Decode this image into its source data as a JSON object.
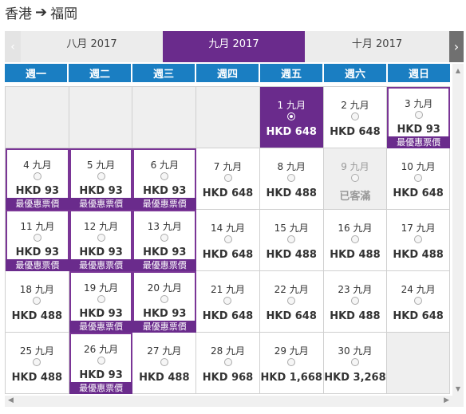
{
  "route": {
    "origin": "香港",
    "arrow": "➔",
    "destination": "福岡"
  },
  "months": {
    "prev_arrow": "‹",
    "next_arrow": "›",
    "prev": "八月 2017",
    "current": "九月 2017",
    "next": "十月 2017"
  },
  "weekdays": [
    "週一",
    "週二",
    "週三",
    "週四",
    "週五",
    "週六",
    "週日"
  ],
  "best_label": "最優惠票價",
  "rows": [
    [
      {
        "empty": true
      },
      {
        "empty": true
      },
      {
        "empty": true
      },
      {
        "empty": true
      },
      {
        "date": "1 九月",
        "price": "HKD 648",
        "selected": true
      },
      {
        "date": "2 九月",
        "price": "HKD 648"
      },
      {
        "date": "3 九月",
        "price": "HKD 93",
        "best": true
      }
    ],
    [
      {
        "date": "4 九月",
        "price": "HKD 93",
        "best": true
      },
      {
        "date": "5 九月",
        "price": "HKD 93",
        "best": true
      },
      {
        "date": "6 九月",
        "price": "HKD 93",
        "best": true
      },
      {
        "date": "7 九月",
        "price": "HKD 648"
      },
      {
        "date": "8 九月",
        "price": "HKD 488"
      },
      {
        "date": "9 九月",
        "price": "已客滿",
        "soldout": true
      },
      {
        "date": "10 九月",
        "price": "HKD 648"
      }
    ],
    [
      {
        "date": "11 九月",
        "price": "HKD 93",
        "best": true
      },
      {
        "date": "12 九月",
        "price": "HKD 93",
        "best": true
      },
      {
        "date": "13 九月",
        "price": "HKD 93",
        "best": true
      },
      {
        "date": "14 九月",
        "price": "HKD 648"
      },
      {
        "date": "15 九月",
        "price": "HKD 488"
      },
      {
        "date": "16 九月",
        "price": "HKD 488"
      },
      {
        "date": "17 九月",
        "price": "HKD 488"
      }
    ],
    [
      {
        "date": "18 九月",
        "price": "HKD 488"
      },
      {
        "date": "19 九月",
        "price": "HKD 93",
        "best": true
      },
      {
        "date": "20 九月",
        "price": "HKD 93",
        "best": true
      },
      {
        "date": "21 九月",
        "price": "HKD 648"
      },
      {
        "date": "22 九月",
        "price": "HKD 648"
      },
      {
        "date": "23 九月",
        "price": "HKD 488"
      },
      {
        "date": "24 九月",
        "price": "HKD 648"
      }
    ],
    [
      {
        "date": "25 九月",
        "price": "HKD 488"
      },
      {
        "date": "26 九月",
        "price": "HKD 93",
        "best": true
      },
      {
        "date": "27 九月",
        "price": "HKD 488"
      },
      {
        "date": "28 九月",
        "price": "HKD 968"
      },
      {
        "date": "29 九月",
        "price": "HKD 1,668"
      },
      {
        "date": "30 九月",
        "price": "HKD 3,268"
      },
      {
        "empty": true
      }
    ]
  ],
  "colors": {
    "accent": "#6a2b8c",
    "header_blue": "#1a7ec2"
  }
}
